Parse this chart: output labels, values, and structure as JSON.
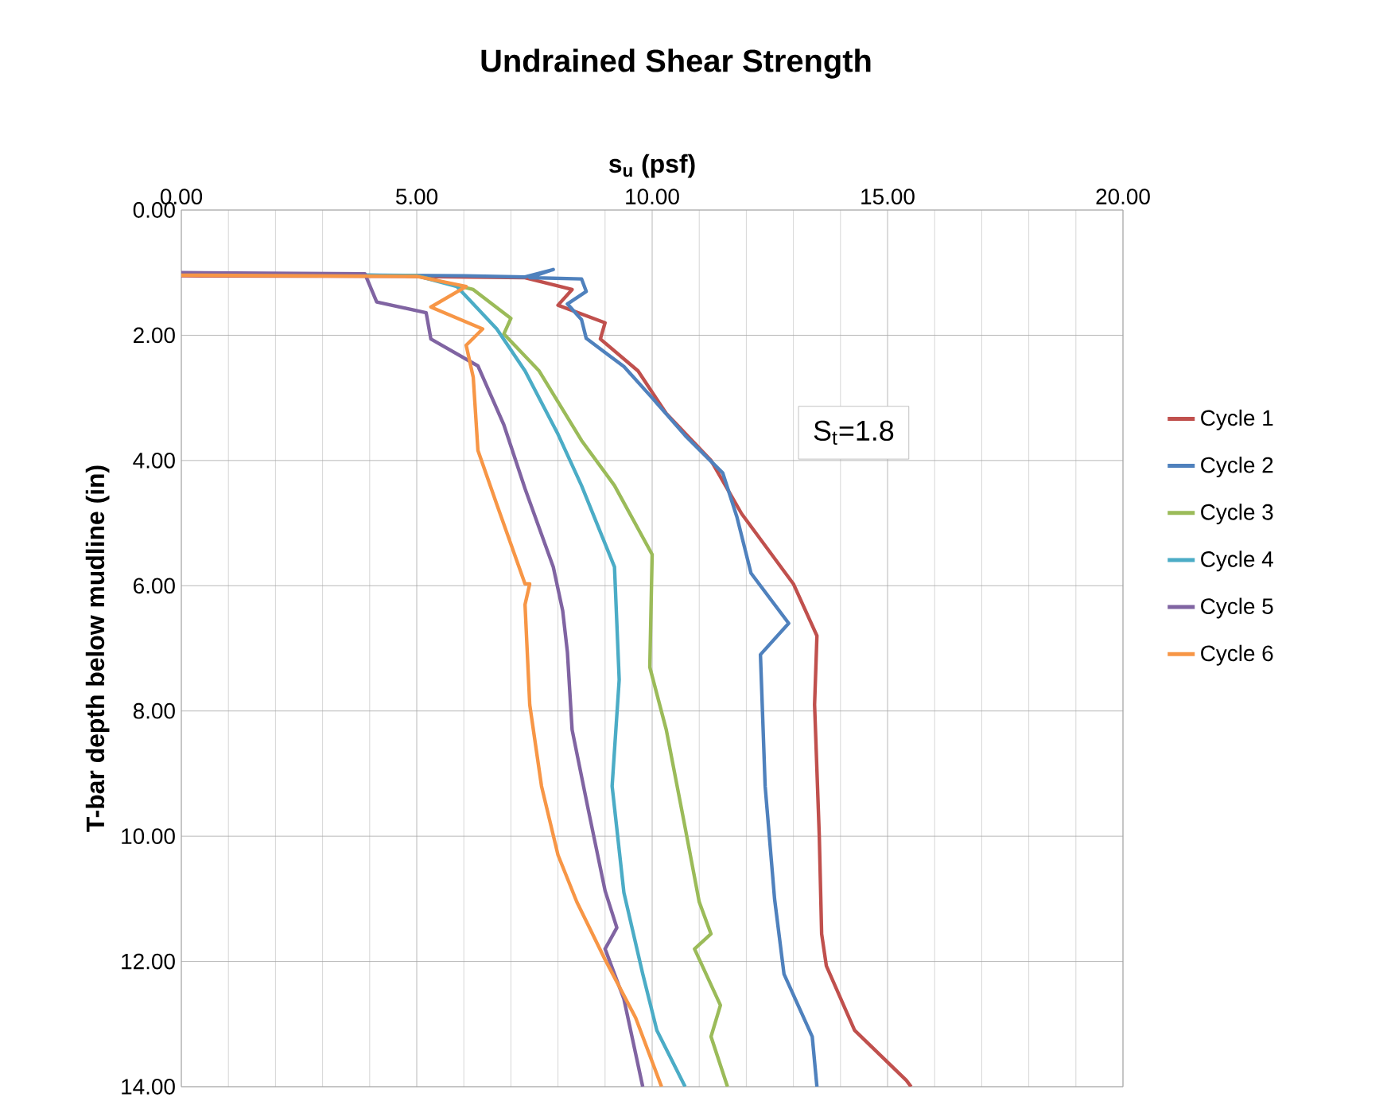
{
  "chart_data": {
    "type": "line",
    "title": "Undrained Shear Strength",
    "xlabel": "s$_{u}$ (psf)",
    "ylabel": "T-bar depth below mudline (in)",
    "xlim": [
      0,
      20
    ],
    "ylim": [
      14,
      0
    ],
    "xticks": [
      {
        "value": 0,
        "label": "0.00"
      },
      {
        "value": 5,
        "label": "5.00"
      },
      {
        "value": 10,
        "label": "10.00"
      },
      {
        "value": 15,
        "label": "15.00"
      },
      {
        "value": 20,
        "label": "20.00"
      }
    ],
    "yticks": [
      {
        "value": 0,
        "label": "0.00"
      },
      {
        "value": 2,
        "label": "2.00"
      },
      {
        "value": 4,
        "label": "4.00"
      },
      {
        "value": 6,
        "label": "6.00"
      },
      {
        "value": 8,
        "label": "8.00"
      },
      {
        "value": 10,
        "label": "10.00"
      },
      {
        "value": 12,
        "label": "12.00"
      },
      {
        "value": 14,
        "label": "14.00"
      }
    ],
    "grid": true,
    "legend": "right",
    "line_style": "solid",
    "annotations": [
      "S$_{t}$=1.8"
    ],
    "series": [
      {
        "name": "Cycle 1",
        "color": "#c0504d",
        "x": [
          0,
          5,
          7.3,
          8.3,
          8.0,
          9.0,
          8.9,
          9.7,
          10.3,
          11.25,
          11.9,
          13.0,
          13.5,
          13.45,
          13.55,
          13.6,
          13.7,
          14.3,
          15.4,
          15.5
        ],
        "values": [
          1.05,
          1.06,
          1.08,
          1.27,
          1.52,
          1.8,
          2.06,
          2.57,
          3.25,
          4.0,
          4.85,
          5.97,
          6.8,
          7.9,
          10.0,
          11.56,
          12.07,
          13.1,
          13.9,
          14.0
        ]
      },
      {
        "name": "Cycle 2",
        "color": "#4f81bd",
        "x": [
          0,
          6,
          7.3,
          7.9,
          7.4,
          8.5,
          8.6,
          8.2,
          8.5,
          8.6,
          9.4,
          10.0,
          10.7,
          11.5,
          11.8,
          12.1,
          12.9,
          12.3,
          12.4,
          12.6,
          12.8,
          13.4,
          13.5
        ],
        "values": [
          1.02,
          1.05,
          1.07,
          0.95,
          1.08,
          1.1,
          1.3,
          1.5,
          1.75,
          2.05,
          2.5,
          3.0,
          3.6,
          4.2,
          4.9,
          5.8,
          6.6,
          7.1,
          9.2,
          11.0,
          12.2,
          13.2,
          14.0
        ]
      },
      {
        "name": "Cycle 3",
        "color": "#9bbb59",
        "x": [
          0,
          5,
          6.2,
          7.0,
          6.85,
          7.6,
          8.5,
          9.2,
          10.0,
          9.95,
          10.3,
          10.7,
          11.0,
          11.25,
          10.9,
          11.45,
          11.25,
          11.6
        ],
        "values": [
          1.02,
          1.05,
          1.27,
          1.73,
          1.98,
          2.57,
          3.68,
          4.4,
          5.5,
          7.3,
          8.3,
          9.86,
          11.05,
          11.56,
          11.8,
          12.7,
          13.2,
          14.0
        ]
      },
      {
        "name": "Cycle 4",
        "color": "#4bacc6",
        "x": [
          0,
          5,
          5.85,
          6.7,
          7.3,
          8.0,
          8.5,
          9.2,
          9.3,
          9.15,
          9.4,
          9.8,
          10.1,
          10.7
        ],
        "values": [
          1.02,
          1.05,
          1.22,
          1.9,
          2.57,
          3.58,
          4.4,
          5.7,
          7.5,
          9.2,
          10.9,
          12.2,
          13.1,
          14.0
        ]
      },
      {
        "name": "Cycle 5",
        "color": "#8064a2",
        "x": [
          0,
          3.9,
          4.15,
          5.2,
          5.3,
          6.3,
          6.85,
          7.3,
          7.9,
          8.1,
          8.2,
          8.3,
          8.65,
          9.0,
          9.25,
          9.0,
          9.4,
          9.8
        ],
        "values": [
          1.0,
          1.02,
          1.47,
          1.64,
          2.06,
          2.49,
          3.43,
          4.45,
          5.7,
          6.4,
          7.06,
          8.3,
          9.6,
          10.87,
          11.46,
          11.8,
          12.6,
          14.0
        ]
      },
      {
        "name": "Cycle 6",
        "color": "#f79646",
        "x": [
          0,
          5,
          6.05,
          5.3,
          6.4,
          6.05,
          6.2,
          6.3,
          6.7,
          7.3,
          7.4,
          7.3,
          7.4,
          7.65,
          8.0,
          8.4,
          9.0,
          9.65,
          10.2
        ],
        "values": [
          1.04,
          1.06,
          1.22,
          1.55,
          1.9,
          2.16,
          2.67,
          3.84,
          4.7,
          5.97,
          5.97,
          6.3,
          7.9,
          9.2,
          10.3,
          11.05,
          11.97,
          12.9,
          14.0
        ]
      }
    ]
  }
}
